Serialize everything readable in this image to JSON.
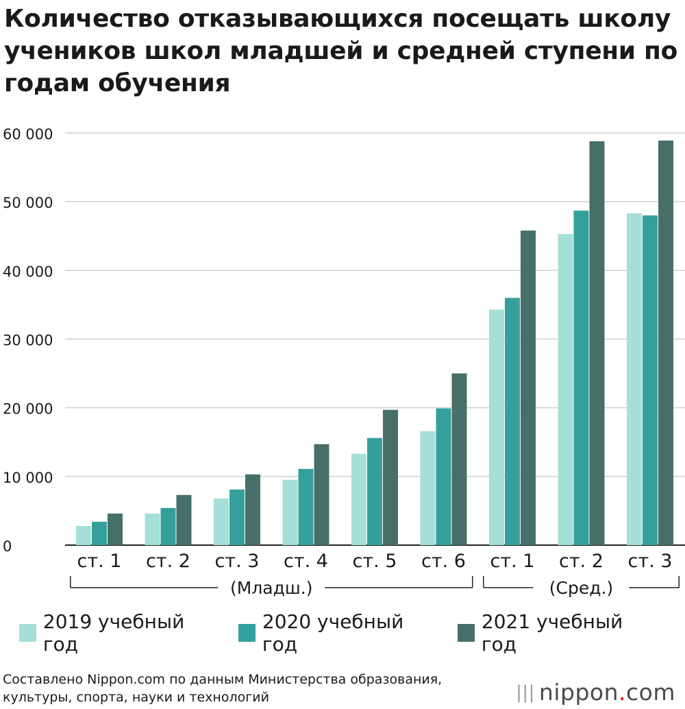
{
  "title": "Количество отказывающихся посещать школу учеников школ младшей и средней ступени по годам обучения",
  "chart_data": {
    "type": "bar",
    "title": "Количество отказывающихся посещать школу учеников школ младшей и средней ступени по годам обучения",
    "xlabel": "",
    "ylabel": "",
    "ylim": [
      0,
      60000
    ],
    "yticks": [
      0,
      10000,
      20000,
      30000,
      40000,
      50000,
      60000
    ],
    "ytick_labels": [
      "0",
      "10 000",
      "20 000",
      "30 000",
      "40 000",
      "50 000",
      "60 000"
    ],
    "grid": true,
    "categories": [
      "ст. 1",
      "ст. 2",
      "ст. 3",
      "ст. 4",
      "ст. 5",
      "ст. 6",
      "ст. 1",
      "ст. 2",
      "ст. 3"
    ],
    "groups": [
      {
        "label": "(Младш.)",
        "from": 0,
        "to": 5
      },
      {
        "label": "(Сред.)",
        "from": 6,
        "to": 8
      }
    ],
    "series": [
      {
        "name": "2019 учебный год",
        "color": "#a5dfd8",
        "values": [
          2800,
          4600,
          6800,
          9500,
          13300,
          16600,
          34300,
          45300,
          48300
        ]
      },
      {
        "name": "2020 учебный год",
        "color": "#35a09b",
        "values": [
          3400,
          5400,
          8100,
          11100,
          15600,
          19900,
          36000,
          48700,
          48000
        ]
      },
      {
        "name": "2021 учебный год",
        "color": "#476f69",
        "values": [
          4600,
          7300,
          10300,
          14700,
          19700,
          25000,
          45800,
          58800,
          58900
        ]
      }
    ]
  },
  "legend_position": "bottom",
  "source": {
    "line1": "Составлено Nippon.com по данным Министерства образования,",
    "line2": "культуры, спорта, науки и технологий"
  },
  "logo": {
    "name": "nippon",
    "dot": ".",
    "suffix": "com",
    "icon": "bars-icon"
  }
}
